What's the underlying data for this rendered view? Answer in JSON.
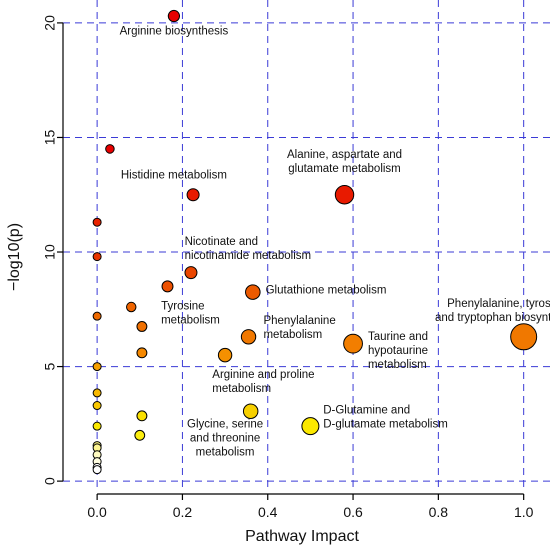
{
  "chart_data": {
    "type": "scatter",
    "title": "",
    "xlabel": "Pathway Impact",
    "ylabel": "−log10(p)",
    "xlim": [
      -0.08,
      1.05
    ],
    "ylim": [
      -0.3,
      21
    ],
    "x_ticks": [
      0.0,
      0.2,
      0.4,
      0.6,
      0.8,
      1.0
    ],
    "x_tick_labels": [
      "0.0",
      "0.2",
      "0.4",
      "0.6",
      "0.8",
      "1.0"
    ],
    "y_ticks": [
      0,
      5,
      10,
      15,
      20
    ],
    "y_tick_labels": [
      "0",
      "5",
      "10",
      "15",
      "20"
    ],
    "grid": true,
    "grid_style": "dashed blue",
    "point_color_scale": "red (high -log10 p) to yellow to white (low -log10 p)",
    "point_size_encoding": "pathway impact",
    "points": [
      {
        "x": 0.18,
        "y": 20.3,
        "color": "#e60000",
        "label": "Arginine biosynthesis"
      },
      {
        "x": 0.03,
        "y": 14.5,
        "color": "#e80000",
        "label": ""
      },
      {
        "x": 0.225,
        "y": 12.5,
        "color": "#e81a00",
        "label": "Histidine metabolism"
      },
      {
        "x": 0.58,
        "y": 12.5,
        "color": "#e81a00",
        "label": "Alanine, aspartate and glutamate metabolism"
      },
      {
        "x": 0.0,
        "y": 11.3,
        "color": "#e82200",
        "label": ""
      },
      {
        "x": 0.0,
        "y": 9.8,
        "color": "#e83500",
        "label": ""
      },
      {
        "x": 0.22,
        "y": 9.1,
        "color": "#ea4600",
        "label": "Nicotinate and nicotinamide metabolism"
      },
      {
        "x": 0.165,
        "y": 8.5,
        "color": "#ec5000",
        "label": "Tyrosine metabolism"
      },
      {
        "x": 0.365,
        "y": 8.25,
        "color": "#ec5a00",
        "label": "Glutathione metabolism"
      },
      {
        "x": 0.08,
        "y": 7.6,
        "color": "#ef6400",
        "label": ""
      },
      {
        "x": 0.0,
        "y": 7.2,
        "color": "#ef6a00",
        "label": ""
      },
      {
        "x": 0.105,
        "y": 6.75,
        "color": "#f07000",
        "label": ""
      },
      {
        "x": 1.0,
        "y": 6.3,
        "color": "#f07800",
        "label": "Phenylalanine, tyrosine and tryptophan biosynthesis"
      },
      {
        "x": 0.355,
        "y": 6.3,
        "color": "#f07800",
        "label": "Phenylalanine metabolism"
      },
      {
        "x": 0.6,
        "y": 6.0,
        "color": "#f27e00",
        "label": "Taurine and hypotaurine metabolism"
      },
      {
        "x": 0.105,
        "y": 5.6,
        "color": "#f58800",
        "label": ""
      },
      {
        "x": 0.3,
        "y": 5.5,
        "color": "#f59000",
        "label": "Arginine and proline metabolism"
      },
      {
        "x": 0.0,
        "y": 5.0,
        "color": "#f7a000",
        "label": ""
      },
      {
        "x": 0.0,
        "y": 3.85,
        "color": "#f8b800",
        "label": ""
      },
      {
        "x": 0.0,
        "y": 3.3,
        "color": "#f9c800",
        "label": ""
      },
      {
        "x": 0.36,
        "y": 3.05,
        "color": "#f7d000",
        "label": "Glycine, serine and threonine metabolism"
      },
      {
        "x": 0.105,
        "y": 2.85,
        "color": "#fae000",
        "label": ""
      },
      {
        "x": 0.5,
        "y": 2.4,
        "color": "#fbe800",
        "label": "D-Glutamine and D-glutamate metabolism"
      },
      {
        "x": 0.0,
        "y": 2.4,
        "color": "#fbe800",
        "label": ""
      },
      {
        "x": 0.1,
        "y": 2.0,
        "color": "#fcee10",
        "label": ""
      },
      {
        "x": 0.0,
        "y": 1.55,
        "color": "#fdf580",
        "label": ""
      },
      {
        "x": 0.0,
        "y": 1.45,
        "color": "#fdf590",
        "label": ""
      },
      {
        "x": 0.0,
        "y": 1.15,
        "color": "#fefac0",
        "label": ""
      },
      {
        "x": 0.0,
        "y": 0.85,
        "color": "#fffde0",
        "label": ""
      },
      {
        "x": 0.0,
        "y": 0.6,
        "color": "#ffffff",
        "label": ""
      },
      {
        "x": 0.0,
        "y": 0.5,
        "color": "#ffffff",
        "label": ""
      }
    ],
    "annotations": [
      {
        "lines": [
          "Arginine biosynthesis"
        ],
        "x": 0.18,
        "y": 19.5,
        "anchor": "middle"
      },
      {
        "lines": [
          "Alanine, aspartate and",
          "glutamate metabolism"
        ],
        "x": 0.58,
        "y": 14.1,
        "anchor": "middle"
      },
      {
        "lines": [
          "Histidine metabolism"
        ],
        "x": 0.18,
        "y": 13.2,
        "anchor": "middle"
      },
      {
        "lines": [
          "Nicotinate and",
          "nicotinamide metabolism"
        ],
        "x": 0.205,
        "y": 10.3,
        "anchor": "start"
      },
      {
        "lines": [
          "Tyrosine",
          "metabolism"
        ],
        "x": 0.15,
        "y": 7.5,
        "anchor": "start"
      },
      {
        "lines": [
          "Glutathione metabolism"
        ],
        "x": 0.395,
        "y": 8.2,
        "anchor": "start"
      },
      {
        "lines": [
          "Phenylalanine, tyrosine",
          "and tryptophan biosynthesis"
        ],
        "x": 0.96,
        "y": 7.6,
        "anchor": "middle"
      },
      {
        "lines": [
          "Phenylalanine",
          "metabolism"
        ],
        "x": 0.39,
        "y": 6.85,
        "anchor": "start"
      },
      {
        "lines": [
          "Taurine and",
          "hypotaurine",
          "metabolism"
        ],
        "x": 0.635,
        "y": 6.15,
        "anchor": "start"
      },
      {
        "lines": [
          "Arginine and proline",
          "metabolism"
        ],
        "x": 0.27,
        "y": 4.5,
        "anchor": "start"
      },
      {
        "lines": [
          "Glycine, serine",
          "and threonine",
          "metabolism"
        ],
        "x": 0.3,
        "y": 2.35,
        "anchor": "middle"
      },
      {
        "lines": [
          "D-Glutamine and",
          "D-glutamate metabolism"
        ],
        "x": 0.53,
        "y": 2.95,
        "anchor": "start"
      }
    ]
  }
}
